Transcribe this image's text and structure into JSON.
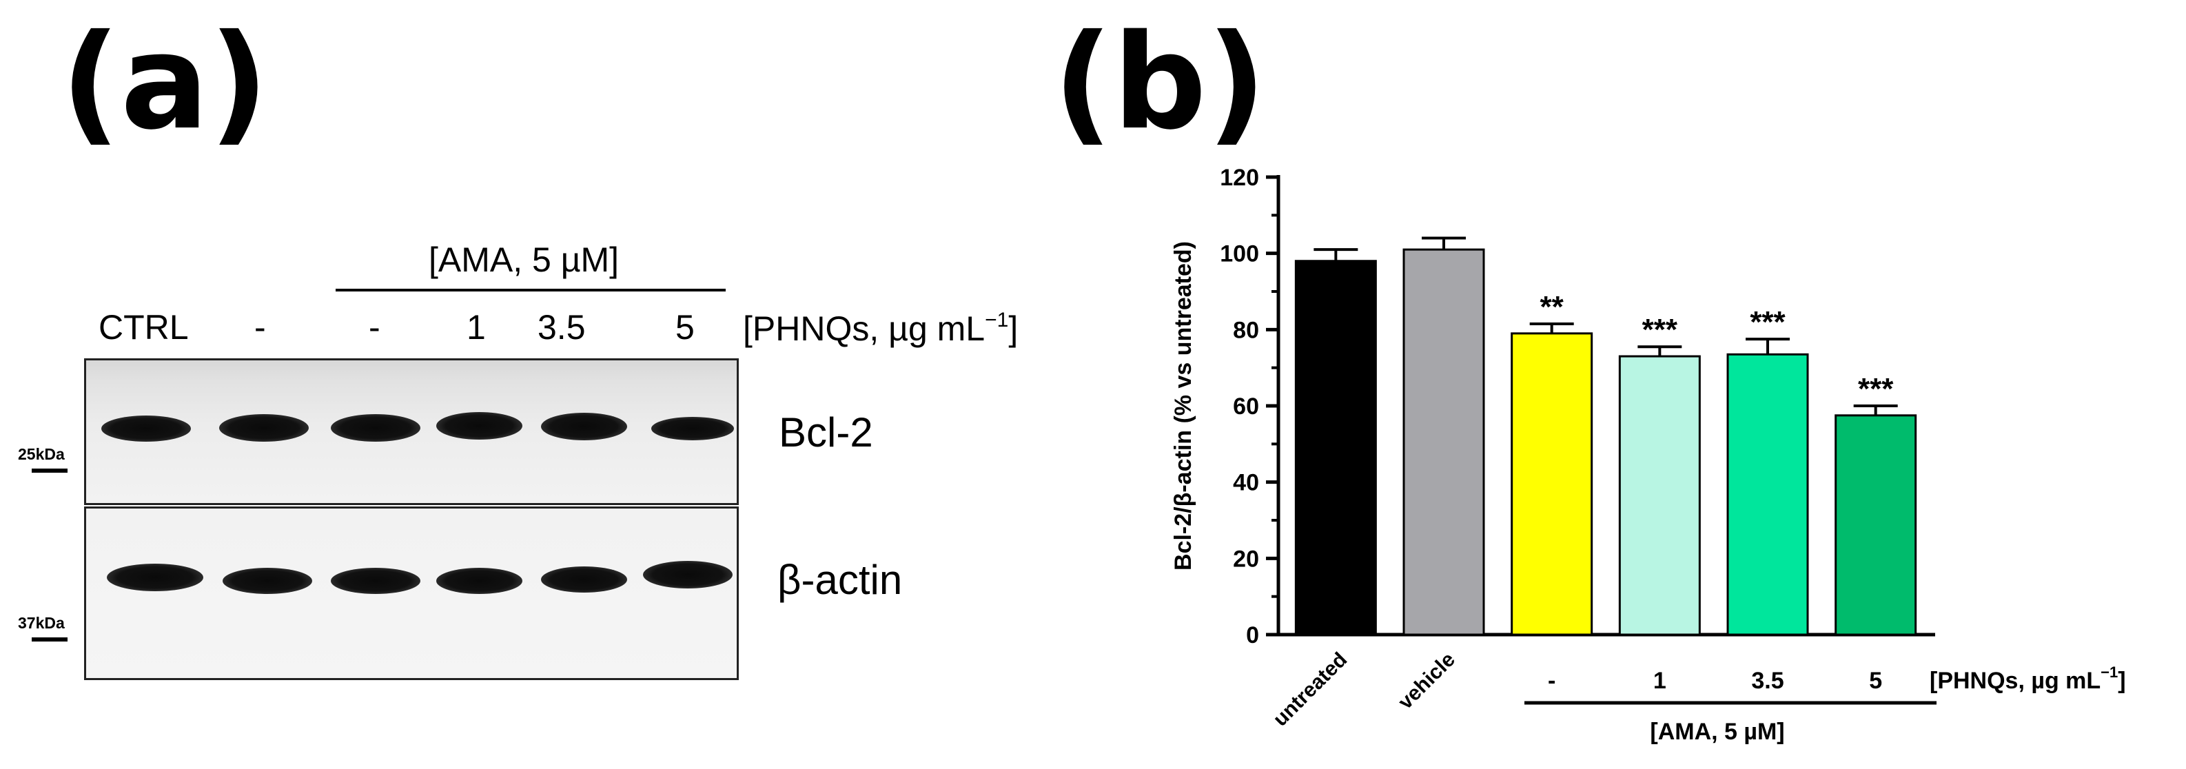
{
  "panels": {
    "a_label": "(a)",
    "b_label": "(b)"
  },
  "western_blot": {
    "group_label": "[AMA, 5 µM]",
    "lanes": [
      "CTRL",
      "-",
      "-",
      "1",
      "3.5",
      "5"
    ],
    "treatment_label": "[PHNQs, µg mL",
    "treatment_sup": "−1",
    "treatment_close": "]",
    "rows": [
      {
        "protein": "Bcl-2",
        "marker": "25kDa"
      },
      {
        "protein": "β-actin",
        "marker": "37kDa"
      }
    ]
  },
  "chart_data": {
    "type": "bar",
    "ylabel": "Bcl-2/β-actin (% vs untreated)",
    "ylim": [
      0,
      120
    ],
    "yticks": [
      0,
      20,
      40,
      60,
      80,
      100,
      120
    ],
    "categories": [
      "untreated",
      "vehicle",
      "-",
      "1",
      "3.5",
      "5"
    ],
    "values": [
      98,
      101,
      79,
      73,
      73.5,
      57.5
    ],
    "errors": [
      3,
      3,
      2.5,
      2.5,
      4,
      2.5
    ],
    "significance": [
      "",
      "",
      "**",
      "***",
      "***",
      "***"
    ],
    "colors": [
      "#000000",
      "#a6a6aa",
      "#ffff00",
      "#b8f5e3",
      "#00e69c",
      "#00bb6c"
    ],
    "group_label": "[AMA, 5 µM]",
    "treatment_label": "[PHNQs, µg mL",
    "treatment_sup": "−1",
    "treatment_close": "]",
    "grid": false,
    "legend": "none"
  }
}
